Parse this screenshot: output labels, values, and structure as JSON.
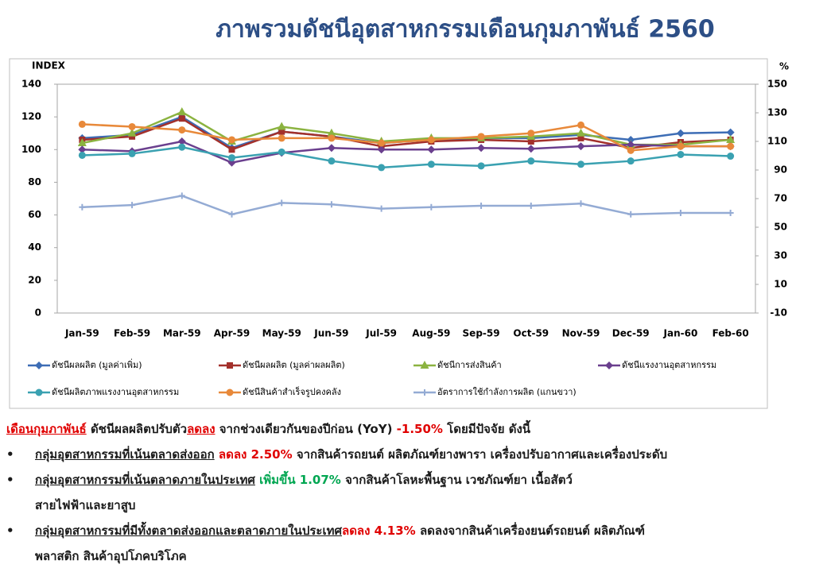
{
  "chart_data": {
    "type": "line",
    "title": "ภาพรวมดัชนีอุตสาหกรรมเดือนกุมภาพันธ์ 2560",
    "ylabel": "INDEX",
    "y2label": "%",
    "categories": [
      "Jan-59",
      "Feb-59",
      "Mar-59",
      "Apr-59",
      "May-59",
      "Jun-59",
      "Jul-59",
      "Aug-59",
      "Sep-59",
      "Oct-59",
      "Nov-59",
      "Dec-59",
      "Jan-60",
      "Feb-60"
    ],
    "ylim": [
      0,
      140
    ],
    "yticks": [
      0,
      20,
      40,
      60,
      80,
      100,
      120,
      140
    ],
    "y2lim": [
      -10,
      150
    ],
    "y2ticks": [
      -10,
      10,
      30,
      50,
      70,
      90,
      110,
      130,
      150
    ],
    "grid": false,
    "legend": "bottom",
    "series": [
      {
        "name": "ดัชนีผลผลิต (มูลค่าเพิ่ม)",
        "color": "#3d6db5",
        "marker": "diamond",
        "values": [
          107,
          109,
          120,
          101,
          111,
          108,
          104,
          106,
          107,
          107,
          109,
          106,
          110,
          110.5
        ]
      },
      {
        "name": "ดัชนีผลผลิต (มูลค่าผลผลิต)",
        "color": "#a3302b",
        "marker": "square",
        "values": [
          106,
          108,
          119,
          100,
          111,
          108,
          102,
          105,
          106,
          105,
          107,
          101,
          104.5,
          106
        ]
      },
      {
        "name": "ดัชนีการส่งสินค้า",
        "color": "#8bb340",
        "marker": "triangle",
        "values": [
          104,
          110,
          123,
          105,
          114,
          110,
          105,
          107,
          107,
          108,
          110,
          103,
          103,
          106
        ]
      },
      {
        "name": "ดัชนีแรงงานอุตสาหกรรม",
        "color": "#6a3f8e",
        "marker": "diamond",
        "values": [
          100,
          99,
          105,
          92,
          98,
          101,
          100,
          100,
          101,
          100.5,
          102,
          103,
          102,
          102
        ]
      },
      {
        "name": "ดัชนีผลิตภาพแรงงานอุตสาหกรรม",
        "color": "#3aa1b1",
        "marker": "circle",
        "values": [
          96.5,
          97.5,
          101.5,
          95,
          98.5,
          93,
          89,
          91,
          90,
          93,
          91,
          93,
          97,
          96
        ]
      },
      {
        "name": "ดัชนีสินค้าสำเร็จรูปคงคลัง",
        "color": "#e8893a",
        "marker": "circle",
        "values": [
          115.5,
          114,
          112,
          106,
          107,
          107,
          104,
          106,
          108,
          110,
          115,
          99.5,
          102,
          102
        ]
      },
      {
        "name": "อัตราการใช้กำลังการผลิต (แกนขวา)",
        "color": "#94abd4",
        "marker": "plus",
        "axis": "y2",
        "values": [
          64,
          65.5,
          72,
          59,
          67,
          66,
          63,
          64,
          65,
          65,
          66.5,
          59,
          60,
          60
        ]
      }
    ]
  },
  "notes": {
    "intro": [
      {
        "text": "เดือนกุมภาพันธ์",
        "style": "red-underline"
      },
      {
        "text": " ดัชนีผลผลิตปรับตัว",
        "style": "plain"
      },
      {
        "text": "ลดลง",
        "style": "red-underline"
      },
      {
        "text": "  จากช่วงเดียวกันของปีก่อน (YoY) ",
        "style": "plain"
      },
      {
        "text": "-1.50%",
        "style": "red"
      },
      {
        "text": " โดยมีปัจจัย ดังนี้",
        "style": "plain"
      }
    ],
    "bullets": [
      {
        "bullet": "•",
        "lines": [
          [
            {
              "text": "กลุ่มอุตสาหกรรมที่เน้นตลาดส่งออก",
              "style": "underline"
            },
            {
              "text": " ลดลง 2.50%",
              "style": "red"
            },
            {
              "text": " จากสินค้ารถยนต์ ผลิตภัณฑ์ยางพารา เครื่องปรับอากาศและเครื่องประดับ",
              "style": "plain"
            }
          ]
        ]
      },
      {
        "bullet": "•",
        "lines": [
          [
            {
              "text": "กลุ่มอุตสาหกรรมที่เน้นตลาดภายในประเทศ",
              "style": "underline"
            },
            {
              "text": " เพิ่มขึ้น 1.07%",
              "style": "green"
            },
            {
              "text": " จากสินค้าโลหะพื้นฐาน เวชภัณฑ์ยา เนื้อสัตว์",
              "style": "plain"
            }
          ],
          [
            {
              "text": "สายไฟฟ้าและยาสูบ",
              "style": "plain"
            }
          ]
        ]
      },
      {
        "bullet": "•",
        "lines": [
          [
            {
              "text": "กลุ่มอุตสาหกรรมที่มีทั้งตลาดส่งออกและตลาดภายในประเทศ",
              "style": "underline"
            },
            {
              "text": "ลดลง 4.13%",
              "style": "red"
            },
            {
              "text": " ลดลงจากสินค้าเครื่องยนต์รถยนต์ ผลิตภัณฑ์",
              "style": "plain"
            }
          ],
          [
            {
              "text": "พลาสติก สินค้าอุปโภคบริโภค",
              "style": "plain"
            }
          ]
        ]
      }
    ]
  }
}
